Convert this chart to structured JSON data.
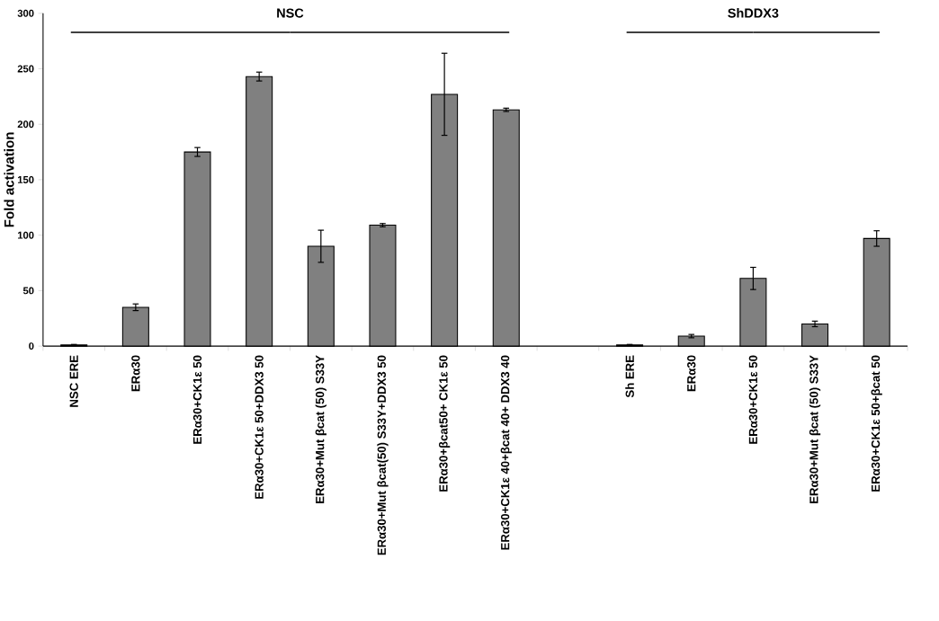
{
  "chart_data": {
    "type": "bar",
    "ylabel": "Fold activation",
    "categories": [
      "NSC ERE",
      "ERα30",
      "ERα30+CK1ε 50",
      "ERα30+CK1ε 50+DDX3 50",
      "ERα30+Mut βcat (50)  S33Y",
      "ERα30+Mut βcat(50)  S33Y+DDX3 50",
      "ERα30+βcat50+ CK1ε 50",
      "ERα30+CK1ε 40+βcat 40+ DDX3 40",
      null,
      "Sh ERE",
      "ERα30",
      "ERα30+CK1ε 50",
      "ERα30+Mut βcat (50)  S33Y",
      "ERα30+CK1ε 50+βcat 50"
    ],
    "values": [
      1,
      35,
      175,
      243,
      90,
      109,
      227,
      213,
      null,
      1,
      9,
      61,
      20,
      97
    ],
    "errors": [
      0.5,
      3,
      4,
      4,
      14.5,
      1.5,
      37,
      1.5,
      null,
      0.5,
      1.5,
      10,
      2.5,
      7
    ],
    "color": "#808080",
    "ylim": [
      0,
      300
    ],
    "yticks": [
      0,
      50,
      100,
      150,
      200,
      250,
      300
    ],
    "annotations": [
      "NSC",
      "ShDDX3"
    ]
  }
}
